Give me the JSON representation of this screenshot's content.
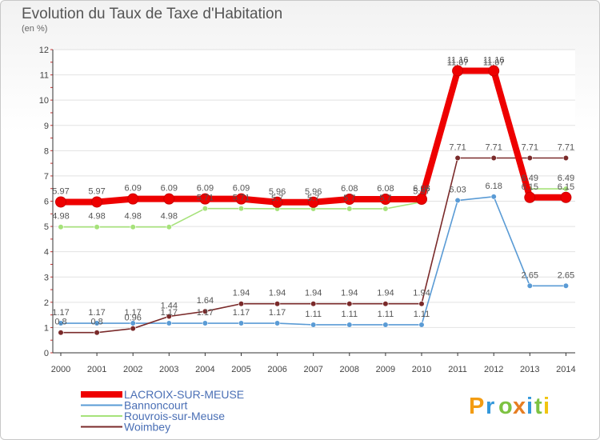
{
  "title": "Evolution du Taux de Taxe d'Habitation",
  "subtitle": "(en %)",
  "logo": {
    "letters": [
      "P",
      "r",
      "o",
      "x",
      "i",
      "t",
      "i"
    ],
    "colors": [
      "#f39c12",
      "#3498db",
      "#7dc242",
      "#e67e22",
      "#3498db",
      "#7dc242",
      "#f1c40f"
    ]
  },
  "chart_data": {
    "type": "line",
    "x": [
      "2000",
      "2001",
      "2002",
      "2003",
      "2004",
      "2005",
      "2006",
      "2007",
      "2008",
      "2009",
      "2010",
      "2011",
      "2012",
      "2013",
      "2014"
    ],
    "yticks": [
      "0",
      "1",
      "2",
      "3",
      "4",
      "5",
      "6",
      "7",
      "8",
      "9",
      "10",
      "11",
      "12"
    ],
    "ylim": [
      0,
      12
    ],
    "grid": "horizontal",
    "legend_position": "bottom-left",
    "series": [
      {
        "name": "LACROIX-SUR-MEUSE",
        "color": "#ee0000",
        "style": "thick",
        "values": [
          5.97,
          5.97,
          6.09,
          6.09,
          6.09,
          6.09,
          5.96,
          5.96,
          6.08,
          6.08,
          6.08,
          11.16,
          11.16,
          6.15,
          6.15
        ],
        "labels": [
          "5.97",
          "5.97",
          "6.09",
          "6.09",
          "6.09",
          "6.09",
          "5.96",
          "5.96",
          "6.08",
          "6.08",
          "6.08",
          "11.16",
          "11.16",
          "6.15",
          "6.15"
        ]
      },
      {
        "name": "Bannoncourt",
        "color": "#5a9bd5",
        "style": "thin",
        "values": [
          1.17,
          1.17,
          1.17,
          1.17,
          1.17,
          1.17,
          1.17,
          1.11,
          1.11,
          1.11,
          1.11,
          6.03,
          6.18,
          2.65,
          2.65
        ],
        "labels": [
          "1.17",
          "1.17",
          "1.17",
          "1.17",
          "1.17",
          "1.17",
          "1.17",
          "1.11",
          "1.11",
          "1.11",
          "1.11",
          "6.03",
          "6.18",
          "2.65",
          "2.65"
        ]
      },
      {
        "name": "Rouvrois-sur-Meuse",
        "color": "#a6e27a",
        "style": "thin",
        "values": [
          4.98,
          4.98,
          4.98,
          4.98,
          5.71,
          5.71,
          5.7,
          5.7,
          5.7,
          5.7,
          5.97,
          11.07,
          11.07,
          6.49,
          6.49
        ],
        "labels": [
          "4.98",
          "4.98",
          "4.98",
          "4.98",
          "5.71",
          "5.71",
          "5.7",
          "5.7",
          "5.7",
          "5.7",
          "5.97",
          "11.07",
          "11.07",
          "6.49",
          "6.49"
        ]
      },
      {
        "name": "Woimbey",
        "color": "#7a2a2a",
        "style": "thin",
        "values": [
          0.8,
          0.8,
          0.96,
          1.44,
          1.64,
          1.94,
          1.94,
          1.94,
          1.94,
          1.94,
          1.94,
          7.71,
          7.71,
          7.71,
          7.71
        ],
        "labels": [
          "0.8",
          "0.8",
          "0.96",
          "1.44",
          "1.64",
          "1.94",
          "1.94",
          "1.94",
          "1.94",
          "1.94",
          "1.94",
          "7.71",
          "7.71",
          "7.71",
          "7.71"
        ]
      }
    ]
  }
}
